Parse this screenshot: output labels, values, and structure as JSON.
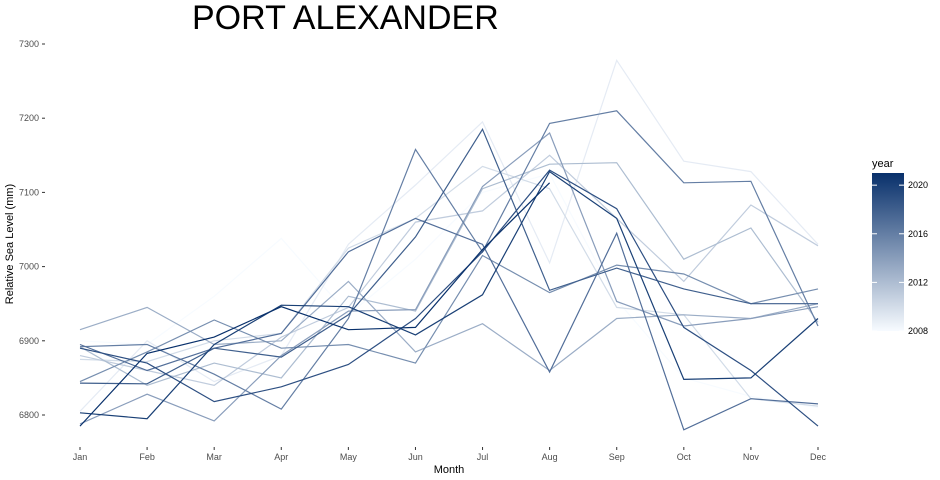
{
  "chart_data": {
    "type": "line",
    "title": "PORT ALEXANDER",
    "xlabel": "Month",
    "ylabel": "Relative Sea Level (mm)",
    "categories": [
      "Jan",
      "Feb",
      "Mar",
      "Apr",
      "May",
      "Jun",
      "Jul",
      "Aug",
      "Sep",
      "Oct",
      "Nov",
      "Dec"
    ],
    "ylim": [
      6760,
      7320
    ],
    "yticks": [
      6800,
      6900,
      7000,
      7100,
      7200,
      7300
    ],
    "grid": false,
    "legend": {
      "title": "year",
      "position": "right",
      "type": "colorbar",
      "range": [
        2008,
        2021
      ],
      "ticks": [
        2008,
        2012,
        2016,
        2020
      ],
      "color_low": "#f7fbff",
      "color_high": "#08306b"
    },
    "series": [
      {
        "year": 2008,
        "values": [
          6900,
          6895,
          6960,
          7038,
          6935,
          7010,
          7100,
          7125,
          6955,
          6850,
          6825,
          6810
        ]
      },
      {
        "year": 2009,
        "values": [
          6805,
          6900,
          6845,
          6880,
          7030,
          7110,
          7195,
          7005,
          7278,
          7142,
          7128,
          7030
        ]
      },
      {
        "year": 2010,
        "values": [
          6875,
          6872,
          6900,
          6910,
          7025,
          7065,
          7135,
          7105,
          6945,
          6935,
          6822,
          6812
        ]
      },
      {
        "year": 2011,
        "values": [
          6880,
          6860,
          6840,
          6905,
          6945,
          7060,
          7075,
          7150,
          7065,
          6980,
          7083,
          7028
        ]
      },
      {
        "year": 2012,
        "values": [
          6892,
          6840,
          6870,
          6850,
          6960,
          6940,
          7105,
          7138,
          7140,
          7010,
          7052,
          6925
        ]
      },
      {
        "year": 2013,
        "values": [
          6915,
          6945,
          6895,
          6900,
          6980,
          6885,
          6923,
          6860,
          6930,
          6935,
          6930,
          6950
        ]
      },
      {
        "year": 2014,
        "values": [
          6788,
          6828,
          6792,
          6880,
          6940,
          6942,
          7108,
          7180,
          6953,
          6920,
          6930,
          6946
        ]
      },
      {
        "year": 2015,
        "values": [
          6845,
          6885,
          6928,
          6890,
          6895,
          6870,
          7015,
          6965,
          7002,
          6990,
          6950,
          6970
        ]
      },
      {
        "year": 2016,
        "values": [
          6892,
          6895,
          6855,
          6808,
          6930,
          7158,
          7020,
          7193,
          7210,
          7113,
          7115,
          6920
        ]
      },
      {
        "year": 2017,
        "values": [
          6895,
          6860,
          6890,
          6910,
          7020,
          7065,
          7030,
          6858,
          7045,
          6780,
          6822,
          6815
        ]
      },
      {
        "year": 2018,
        "values": [
          6843,
          6842,
          6890,
          6878,
          6935,
          7040,
          7185,
          6968,
          6998,
          6970,
          6950,
          6950
        ]
      },
      {
        "year": 2019,
        "values": [
          6890,
          6870,
          6818,
          6838,
          6868,
          6930,
          7020,
          7130,
          7078,
          6918,
          6860,
          6785
        ]
      },
      {
        "year": 2020,
        "values": [
          6803,
          6795,
          6895,
          6948,
          6946,
          6908,
          6962,
          7128,
          7065,
          6848,
          6850,
          6930
        ]
      },
      {
        "year": 2021,
        "values": [
          6785,
          6883,
          6905,
          6946,
          6915,
          6918,
          7023,
          7113,
          null,
          null,
          null,
          null
        ]
      }
    ]
  }
}
